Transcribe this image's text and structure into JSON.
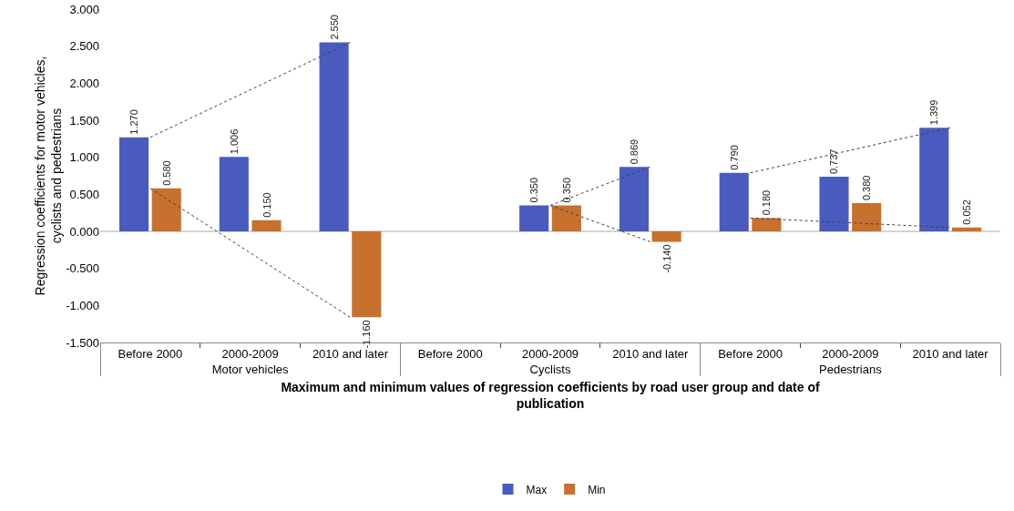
{
  "chart_data": {
    "type": "bar",
    "xlabel": "Maximum and minimum values of regression coefficients by road user group and date of publication",
    "ylabel": "Regression coefficients for motor vehicles, cyclists and pedestrians",
    "categories": [
      "Before 2000",
      "2000-2009",
      "2010 and later",
      "Before 2000",
      "2000-2009",
      "2010 and later",
      "Before 2000",
      "2000-2009",
      "2010 and later"
    ],
    "annotations": [
      "Motor vehicles",
      "Cyclists",
      "Pedestrians"
    ],
    "series": [
      {
        "name": "Max",
        "color": "#4a5bc0",
        "values": [
          1.27,
          1.006,
          2.55,
          null,
          0.35,
          0.869,
          0.79,
          0.737,
          1.399
        ],
        "value_labels": [
          "1.270",
          "1.006",
          "2.550",
          null,
          "0.350",
          "0.869",
          "0.790",
          "0.737",
          "1.399"
        ]
      },
      {
        "name": "Min",
        "color": "#c8702e",
        "values": [
          0.58,
          0.15,
          -1.16,
          null,
          0.35,
          -0.14,
          0.18,
          0.38,
          0.052
        ],
        "value_labels": [
          "0.580",
          "0.150",
          "-1.160",
          null,
          "0.350",
          "-0.140",
          "0.180",
          "0.380",
          "0.052"
        ]
      },
      {
        "type": "line",
        "color": "#404040",
        "line_style": "dotted",
        "values": [
          1.27,
          null,
          2.55,
          null,
          null,
          null,
          null,
          null,
          null
        ]
      },
      {
        "type": "line",
        "color": "#404040",
        "line_style": "dotted",
        "values": [
          0.58,
          null,
          -1.16,
          null,
          null,
          null,
          null,
          null,
          null
        ]
      },
      {
        "type": "line",
        "color": "#404040",
        "line_style": "dotted",
        "values": [
          null,
          null,
          null,
          null,
          0.35,
          0.869,
          null,
          null,
          null
        ]
      },
      {
        "type": "line",
        "color": "#404040",
        "line_style": "dotted",
        "values": [
          null,
          null,
          null,
          null,
          0.35,
          -0.14,
          null,
          null,
          null
        ]
      },
      {
        "type": "line",
        "color": "#404040",
        "line_style": "dotted",
        "values": [
          null,
          null,
          null,
          null,
          null,
          null,
          0.79,
          null,
          1.399
        ]
      },
      {
        "type": "line",
        "color": "#404040",
        "line_style": "dotted",
        "values": [
          null,
          null,
          null,
          null,
          null,
          null,
          0.18,
          null,
          0.052
        ]
      }
    ],
    "ylim": [
      -1.5,
      3.0
    ],
    "yticks": [
      {
        "value": -1.5,
        "label": "-1.500"
      },
      {
        "value": -1.0,
        "label": "-1.000"
      },
      {
        "value": -0.5,
        "label": "-0.500"
      },
      {
        "value": 0,
        "label": "0.000"
      },
      {
        "value": 0.5,
        "label": "0.500"
      },
      {
        "value": 1.0,
        "label": "1.000"
      },
      {
        "value": 1.5,
        "label": "1.500"
      },
      {
        "value": 2.0,
        "label": "2.000"
      },
      {
        "value": 2.5,
        "label": "2.500"
      },
      {
        "value": 3.0,
        "label": "3.000"
      }
    ],
    "ref_lines": [
      {
        "axis": "y",
        "value": 0,
        "color": "#aaaaaa",
        "line_style": "solid"
      }
    ],
    "grid": false,
    "legend": "bottom"
  }
}
